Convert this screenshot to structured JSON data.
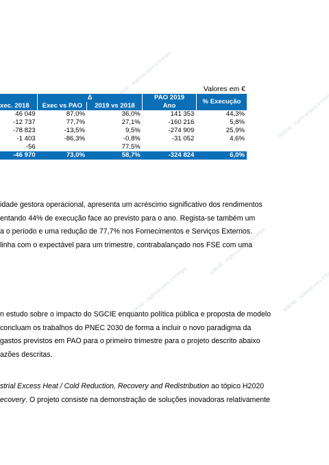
{
  "watermarks": [
    "ADENE - Agência para a Energia",
    "ADENE - Agência para a Energia",
    "ADENE - Agência para a Energia",
    "ADENE - Agência para a Energia",
    "ADENE - Agência para a Energia"
  ],
  "table": {
    "caption": "Valores em €",
    "header_row1": {
      "delta": "Δ",
      "pao": "PAO 2019",
      "pct": "% Execução"
    },
    "header_row2": {
      "exec2018": "xec. 2018",
      "exec_vs_pao": "Exec vs PAO",
      "y2019_vs_2018": "2019 vs 2018",
      "ano": "Ano"
    },
    "rows": [
      {
        "exec2018": "46 049",
        "exec_vs_pao": "87,0%",
        "y2019_vs_2018": "36,0%",
        "ano": "141 353",
        "pct": "44,3%"
      },
      {
        "exec2018": "-12 737",
        "exec_vs_pao": "77,7%",
        "y2019_vs_2018": "27,1%",
        "ano": "-160 216",
        "pct": "5,8%"
      },
      {
        "exec2018": "-78 823",
        "exec_vs_pao": "-13,5%",
        "y2019_vs_2018": "9,5%",
        "ano": "-274 909",
        "pct": "25,9%"
      },
      {
        "exec2018": "-1 403",
        "exec_vs_pao": "-86,3%",
        "y2019_vs_2018": "-0,8%",
        "ano": "-31 052",
        "pct": "4,6%"
      },
      {
        "exec2018": "-56",
        "exec_vs_pao": "",
        "y2019_vs_2018": "77,5%",
        "ano": "",
        "pct": ""
      }
    ],
    "total": {
      "exec2018": "-46 970",
      "exec_vs_pao": "73,0%",
      "y2019_vs_2018": "58,7%",
      "ano": "-324 824",
      "pct": "6,0%"
    }
  },
  "paragraph1": [
    "idade gestora operacional, apresenta um acréscimo significativo dos rendimentos",
    "entando 44% de execução face ao previsto para o ano. Regista-se também um",
    "a o período e uma redução de 77,7% nos Fornecimentos e Serviços Externos.",
    " linha com o expectável para um trimestre, contrabalançado nos FSE com uma"
  ],
  "paragraph2": [
    "n estudo sobre o impacto do SGCIE enquanto política pública e proposta de modelo",
    "concluam os trabalhos do PNEC 2030 de forma a incluir o novo paradigma da",
    "gastos previstos em PAO para o primeiro trimestre para o projeto descrito abaixo",
    "azões descritas."
  ],
  "paragraph3": {
    "line1_italic": "strial Excess Heat / Cold Reduction, Recovery and Redistribution",
    "line1_rest": " ao tópico H2020",
    "line2_italic": "ecovery",
    "line2_rest": ". O projeto consiste na demonstração de soluções inovadoras relativamente"
  }
}
